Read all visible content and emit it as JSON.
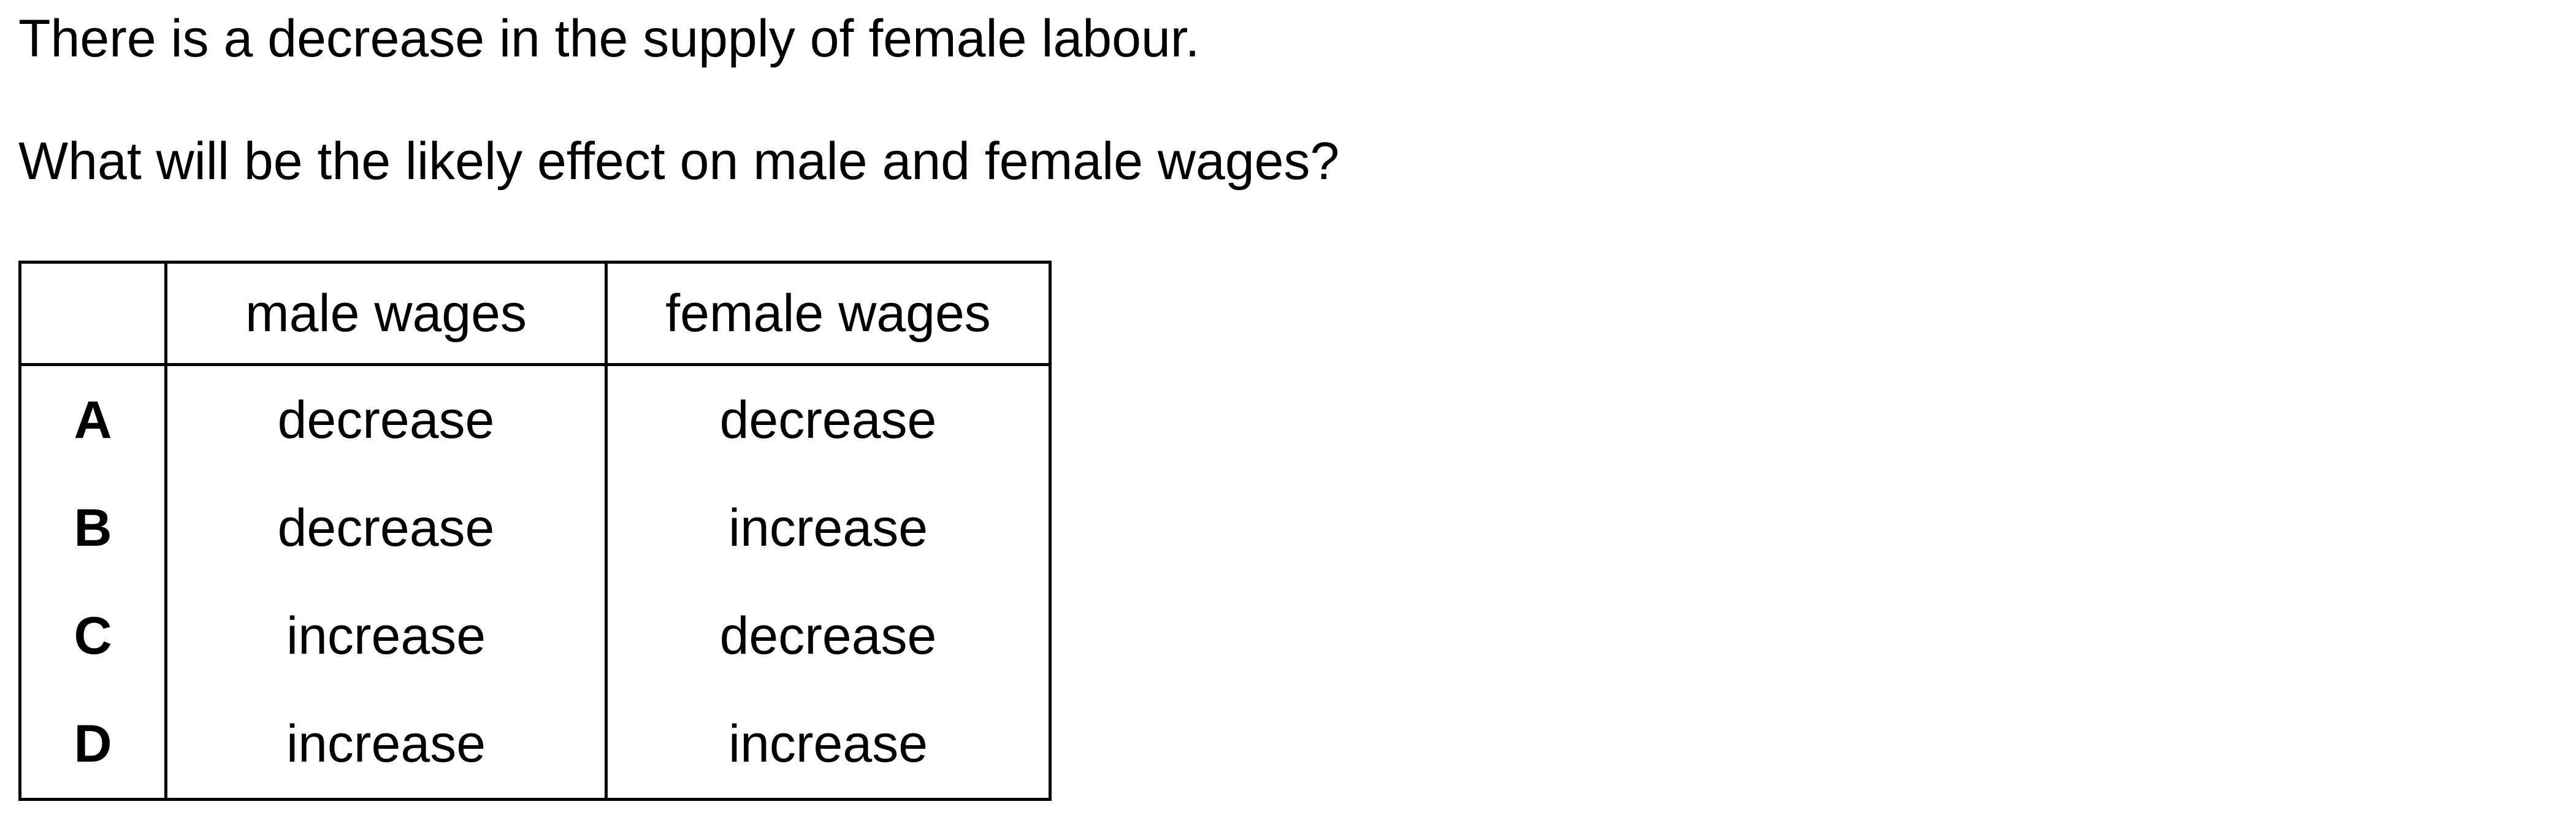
{
  "question": {
    "statement": "There is a decrease in the supply of female labour.",
    "prompt": "What will be the likely effect on male and female wages?"
  },
  "table": {
    "headers": [
      "",
      "male wages",
      "female wages"
    ],
    "rows": [
      {
        "key": "A",
        "male": "decrease",
        "female": "decrease"
      },
      {
        "key": "B",
        "male": "decrease",
        "female": "increase"
      },
      {
        "key": "C",
        "male": "increase",
        "female": "decrease"
      },
      {
        "key": "D",
        "male": "increase",
        "female": "increase"
      }
    ]
  }
}
